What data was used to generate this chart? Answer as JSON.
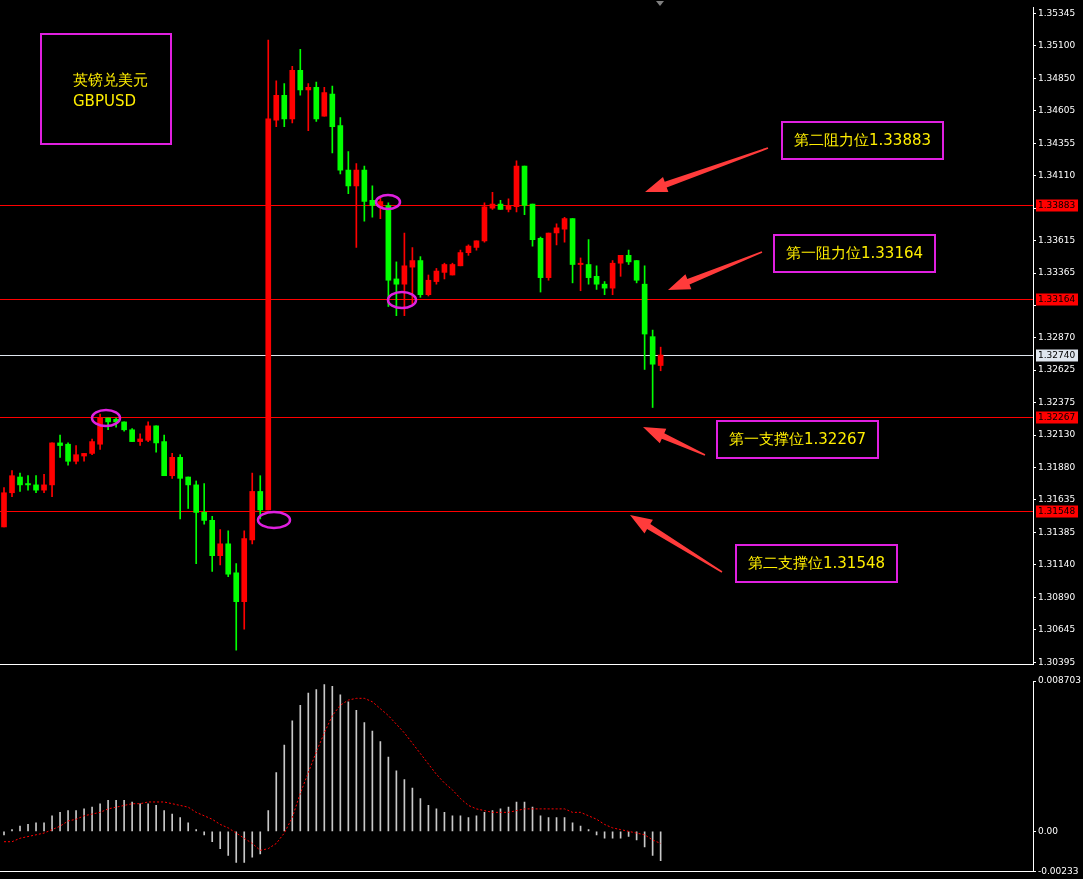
{
  "chart_data": [
    {
      "type": "candlestick",
      "title": "英镑兑美元",
      "subtitle": "GBPUSD",
      "categories": [
        null,
        null,
        null,
        null,
        null,
        null,
        null,
        null,
        null,
        null,
        null,
        null,
        null,
        null,
        null,
        null,
        null,
        null,
        null,
        null,
        null,
        null,
        null,
        null,
        null,
        null,
        null,
        null,
        null,
        null,
        null,
        null,
        null,
        null,
        null,
        null,
        null,
        null,
        null,
        null,
        null,
        null,
        null,
        null,
        null,
        null,
        null,
        null,
        null,
        null,
        null,
        null,
        null,
        null,
        null,
        null,
        null,
        null,
        null,
        null,
        null,
        null,
        null,
        null,
        null,
        null,
        null,
        null,
        null,
        null,
        null,
        null,
        null,
        null,
        null,
        null,
        null,
        null,
        null,
        null,
        null,
        null,
        null,
        null,
        null,
        null,
        null,
        null,
        null,
        null,
        null,
        null,
        null,
        null,
        null,
        null,
        null,
        null,
        null,
        null,
        null,
        null,
        null,
        null,
        null,
        null,
        null,
        null,
        null,
        null,
        null,
        null,
        null,
        null,
        null,
        null,
        null,
        null,
        null,
        null,
        null,
        null,
        null,
        null,
        null,
        null,
        null,
        null,
        null
      ],
      "ohlc": [
        [
          1.3143,
          1.3173,
          1.3143,
          1.3169
        ],
        [
          1.3169,
          1.3186,
          1.3166,
          1.3182
        ],
        [
          1.3181,
          1.3184,
          1.317,
          1.3175
        ],
        [
          1.3176,
          1.3182,
          1.3171,
          1.3175
        ],
        [
          1.3175,
          1.3182,
          1.3169,
          1.3171
        ],
        [
          1.3171,
          1.3183,
          1.3169,
          1.3175
        ],
        [
          1.3175,
          1.3207,
          1.3166,
          1.3207
        ],
        [
          1.3207,
          1.3213,
          1.3196,
          1.3205
        ],
        [
          1.3206,
          1.3207,
          1.319,
          1.3193
        ],
        [
          1.3193,
          1.3205,
          1.3191,
          1.3198
        ],
        [
          1.3197,
          1.3199,
          1.3193,
          1.3199
        ],
        [
          1.3199,
          1.321,
          1.3198,
          1.3208
        ],
        [
          1.3206,
          1.3229,
          1.3202,
          1.3226
        ],
        [
          1.3226,
          1.3226,
          1.3217,
          1.3223
        ],
        [
          1.3225,
          1.3226,
          1.3219,
          1.3223
        ],
        [
          1.3223,
          1.3223,
          1.3216,
          1.3217
        ],
        [
          1.3217,
          1.3218,
          1.3208,
          1.3208
        ],
        [
          1.3208,
          1.3214,
          1.3205,
          1.321
        ],
        [
          1.3209,
          1.3223,
          1.3208,
          1.322
        ],
        [
          1.322,
          1.322,
          1.32,
          1.3207
        ],
        [
          1.3208,
          1.3213,
          1.3182,
          1.3182
        ],
        [
          1.3182,
          1.3199,
          1.318,
          1.3196
        ],
        [
          1.3196,
          1.3198,
          1.3149,
          1.318
        ],
        [
          1.3181,
          1.3181,
          1.3157,
          1.3175
        ],
        [
          1.3175,
          1.3178,
          1.3115,
          1.3154
        ],
        [
          1.3154,
          1.3176,
          1.3145,
          1.3148
        ],
        [
          1.3148,
          1.3151,
          1.3109,
          1.3121
        ],
        [
          1.3121,
          1.3141,
          1.3114,
          1.313
        ],
        [
          1.313,
          1.314,
          1.3105,
          1.3107
        ],
        [
          1.3108,
          1.3115,
          1.3049,
          1.3086
        ],
        [
          1.3086,
          1.314,
          1.3065,
          1.3134
        ],
        [
          1.3133,
          1.3184,
          1.313,
          1.317
        ],
        [
          1.317,
          1.3182,
          1.3149,
          1.3156
        ],
        [
          1.3156,
          1.3514,
          1.3156,
          1.3454
        ],
        [
          1.3453,
          1.3483,
          1.3448,
          1.3472
        ],
        [
          1.3472,
          1.3481,
          1.3448,
          1.3454
        ],
        [
          1.3454,
          1.3494,
          1.3451,
          1.3491
        ],
        [
          1.3491,
          1.3507,
          1.3472,
          1.3476
        ],
        [
          1.3476,
          1.3481,
          1.3445,
          1.3478
        ],
        [
          1.3478,
          1.3482,
          1.3452,
          1.3454
        ],
        [
          1.3456,
          1.3478,
          1.3456,
          1.3474
        ],
        [
          1.3473,
          1.3479,
          1.3428,
          1.3448
        ],
        [
          1.3449,
          1.3455,
          1.3412,
          1.3415
        ],
        [
          1.3415,
          1.3429,
          1.3397,
          1.3403
        ],
        [
          1.3403,
          1.342,
          1.3356,
          1.3415
        ],
        [
          1.3415,
          1.3418,
          1.3376,
          1.3391
        ],
        [
          1.3392,
          1.3403,
          1.3379,
          1.3388
        ],
        [
          1.3387,
          1.3394,
          1.3378,
          1.3391
        ],
        [
          1.3388,
          1.339,
          1.3311,
          1.3331
        ],
        [
          1.3332,
          1.3345,
          1.3304,
          1.3328
        ],
        [
          1.3328,
          1.3367,
          1.3304,
          1.3342
        ],
        [
          1.3341,
          1.3356,
          1.3313,
          1.3346
        ],
        [
          1.3346,
          1.3349,
          1.3318,
          1.332
        ],
        [
          1.332,
          1.3335,
          1.3319,
          1.3331
        ],
        [
          1.333,
          1.334,
          1.3328,
          1.3338
        ],
        [
          1.3337,
          1.3344,
          1.3332,
          1.3343
        ],
        [
          1.3335,
          1.3344,
          1.3335,
          1.3343
        ],
        [
          1.3342,
          1.3354,
          1.3342,
          1.3352
        ],
        [
          1.3352,
          1.3358,
          1.335,
          1.3357
        ],
        [
          1.3356,
          1.3361,
          1.3354,
          1.3361
        ],
        [
          1.3361,
          1.339,
          1.336,
          1.3387
        ],
        [
          1.3386,
          1.3398,
          1.3385,
          1.3389
        ],
        [
          1.3389,
          1.3392,
          1.3385,
          1.3385
        ],
        [
          1.3385,
          1.3393,
          1.3383,
          1.3388
        ],
        [
          1.3387,
          1.3422,
          1.3383,
          1.3418
        ],
        [
          1.3418,
          1.3418,
          1.3381,
          1.3388
        ],
        [
          1.3389,
          1.3389,
          1.3357,
          1.3362
        ],
        [
          1.3363,
          1.3364,
          1.3322,
          1.3333
        ],
        [
          1.3333,
          1.3367,
          1.3331,
          1.3367
        ],
        [
          1.3367,
          1.3374,
          1.3358,
          1.3371
        ],
        [
          1.337,
          1.3379,
          1.336,
          1.3378
        ],
        [
          1.3378,
          1.3378,
          1.3329,
          1.3343
        ],
        [
          1.3343,
          1.3348,
          1.3323,
          1.3344
        ],
        [
          1.3343,
          1.3362,
          1.3328,
          1.3333
        ],
        [
          1.3334,
          1.3342,
          1.3324,
          1.3328
        ],
        [
          1.3328,
          1.333,
          1.332,
          1.3325
        ],
        [
          1.3325,
          1.3346,
          1.332,
          1.3344
        ],
        [
          1.3344,
          1.335,
          1.3334,
          1.335
        ],
        [
          1.335,
          1.3354,
          1.3343,
          1.3345
        ],
        [
          1.3346,
          1.3346,
          1.3329,
          1.3331
        ],
        [
          1.3328,
          1.3342,
          1.3263,
          1.329
        ],
        [
          1.3288,
          1.3293,
          1.3234,
          1.3267
        ],
        [
          1.3266,
          1.328,
          1.3262,
          1.3274
        ],
        null,
        null,
        null,
        null,
        null,
        null,
        null,
        null,
        null,
        null,
        null,
        null,
        null,
        null,
        null,
        null,
        null,
        null,
        null,
        null,
        null,
        null,
        null,
        null,
        null,
        null,
        null,
        null,
        null,
        null,
        null,
        null,
        null,
        null,
        null,
        null,
        null,
        null,
        null,
        null,
        null,
        null,
        null,
        null,
        null,
        null
      ],
      "colors": [
        "#ff0000",
        "#ff0000",
        "#00ff00",
        "#00ff00",
        "#00ff00",
        "#ff0000",
        "#ff0000",
        "#00ff00",
        "#00ff00",
        "#ff0000",
        "#ff0000",
        "#ff0000",
        "#ff0000",
        "#00ff00",
        "#00ff00",
        "#00ff00",
        "#00ff00",
        "#ff0000",
        "#ff0000",
        "#00ff00",
        "#00ff00",
        "#ff0000",
        "#00ff00",
        "#00ff00",
        "#00ff00",
        "#00ff00",
        "#00ff00",
        "#ff0000",
        "#00ff00",
        "#00ff00",
        "#ff0000",
        "#ff0000",
        "#00ff00",
        "#ff0000",
        "#ff0000",
        "#00ff00",
        "#ff0000",
        "#00ff00",
        "#ff0000",
        "#00ff00",
        "#ff0000",
        "#00ff00",
        "#00ff00",
        "#00ff00",
        "#ff0000",
        "#00ff00",
        "#00ff00",
        "#ff0000",
        "#00ff00",
        "#00ff00",
        "#ff0000",
        "#ff0000",
        "#00ff00",
        "#ff0000",
        "#ff0000",
        "#ff0000",
        "#ff0000",
        "#ff0000",
        "#ff0000",
        "#ff0000",
        "#ff0000",
        "#ff0000",
        "#00ff00",
        "#ff0000",
        "#ff0000",
        "#00ff00",
        "#00ff00",
        "#00ff00",
        "#ff0000",
        "#ff0000",
        "#ff0000",
        "#00ff00",
        "#ff0000",
        "#00ff00",
        "#00ff00",
        "#00ff00",
        "#ff0000",
        "#ff0000",
        "#00ff00",
        "#00ff00",
        "#00ff00",
        "#00ff00",
        "#ff0000",
        null,
        null,
        null,
        null,
        null,
        null,
        null,
        null,
        null,
        null,
        null,
        null,
        null,
        null,
        null,
        null,
        null,
        null,
        null,
        null,
        null,
        null,
        null,
        null,
        null,
        null,
        null,
        null,
        null,
        null,
        null,
        null,
        null,
        null,
        null,
        null,
        null,
        null,
        null,
        null,
        null,
        null,
        null,
        null,
        null,
        null
      ],
      "ylim": [
        1.3038,
        1.3539
      ],
      "yticks": [
        1.35345,
        {
          "value": 1.351,
          "label": "1.35100"
        },
        {
          "value": 1.3485,
          "label": "1.34850"
        },
        1.34605,
        1.34355,
        {
          "value": 1.3411,
          "label": "1.34110"
        },
        {
          "value": 1.3386,
          "label": null
        },
        1.33615,
        1.33365,
        {
          "value": 1.3312,
          "label": null
        },
        {
          "value": 1.3287,
          "label": "1.32870"
        },
        1.32625,
        1.32375,
        {
          "value": 1.3213,
          "label": "1.32130"
        },
        {
          "value": 1.3188,
          "label": "1.31880"
        },
        1.31635,
        1.31385,
        {
          "value": 1.3114,
          "label": "1.31140"
        },
        {
          "value": 1.3089,
          "label": "1.30890"
        },
        1.30645,
        1.30395
      ],
      "tick_labels": "y",
      "ref_lines": [
        {
          "axis": "y",
          "value": 1.33883,
          "label": "1.33883",
          "color": "#ff0000"
        },
        {
          "axis": "y",
          "value": 1.33164,
          "label": "1.33164",
          "color": "#ff0000"
        },
        {
          "axis": "y",
          "value": 1.3274,
          "label": "1.32740",
          "color": "#dfe6ee"
        },
        {
          "axis": "y",
          "value": 1.32267,
          "label": "1.32267",
          "color": "#ff0000"
        },
        {
          "axis": "y",
          "value": 1.31548,
          "label": "1.31548",
          "color": "#ff0000"
        }
      ],
      "annotations": [
        "第二阻力位1.33883",
        "第一阻力位1.33164",
        "第一支撑位1.32267",
        "第二支撑位1.31548"
      ]
    },
    {
      "type": "bar",
      "categories": [
        null,
        null,
        null,
        null,
        null,
        null,
        null,
        null,
        null,
        null,
        null,
        null,
        null,
        null,
        null,
        null,
        null,
        null,
        null,
        null,
        null,
        null,
        null,
        null,
        null,
        null,
        null,
        null,
        null,
        null,
        null,
        null,
        null,
        null,
        null,
        null,
        null,
        null,
        null,
        null,
        null,
        null,
        null,
        null,
        null,
        null,
        null,
        null,
        null,
        null,
        null,
        null,
        null,
        null,
        null,
        null,
        null,
        null,
        null,
        null,
        null,
        null,
        null,
        null,
        null,
        null,
        null,
        null,
        null,
        null,
        null,
        null,
        null,
        null,
        null,
        null,
        null,
        null,
        null,
        null,
        null,
        null,
        null,
        null,
        null,
        null,
        null,
        null,
        null,
        null,
        null,
        null,
        null,
        null,
        null,
        null,
        null,
        null,
        null,
        null,
        null,
        null,
        null,
        null,
        null,
        null,
        null,
        null,
        null,
        null,
        null,
        null,
        null,
        null,
        null,
        null,
        null,
        null,
        null,
        null,
        null,
        null,
        null,
        null,
        null,
        null,
        null,
        null,
        null
      ],
      "series": [
        {
          "type": "bar",
          "color": "#c8c8c8",
          "values": [
            -0.0002,
            0.0001,
            0.0003,
            0.0004,
            0.0005,
            0.0005,
            0.0009,
            0.0011,
            0.0012,
            0.0012,
            0.0013,
            0.0014,
            0.0016,
            0.0018,
            0.0018,
            0.0018,
            0.0017,
            0.0016,
            0.0016,
            0.0015,
            0.0012,
            0.001,
            0.0008,
            0.0005,
            0.0001,
            -0.0002,
            -0.0006,
            -0.001,
            -0.0014,
            -0.0018,
            -0.0018,
            -0.0015,
            -0.0013,
            0.0012,
            0.0034,
            0.005,
            0.0064,
            0.0073,
            0.008,
            0.0082,
            0.0085,
            0.0084,
            0.0079,
            0.0075,
            0.007,
            0.0063,
            0.0058,
            0.0052,
            0.0043,
            0.0035,
            0.003,
            0.0025,
            0.0019,
            0.0015,
            0.0013,
            0.0011,
            0.0009,
            0.0009,
            0.0008,
            0.0009,
            0.0011,
            0.0012,
            0.0013,
            0.0014,
            0.0017,
            0.0017,
            0.0014,
            0.0009,
            0.0008,
            0.0008,
            0.0008,
            0.0005,
            0.0003,
            0.0001,
            -0.0002,
            -0.0004,
            -0.0004,
            -0.0004,
            -0.0003,
            -0.0005,
            -0.0009,
            -0.0014,
            -0.0017,
            null,
            null,
            null,
            null,
            null,
            null,
            null,
            null,
            null,
            null,
            null,
            null,
            null,
            null,
            null,
            null,
            null,
            null,
            null,
            null,
            null,
            null,
            null,
            null,
            null,
            null,
            null,
            null,
            null,
            null,
            null,
            null,
            null,
            null,
            null,
            null,
            null,
            null,
            null,
            null,
            null,
            null,
            null,
            null,
            null,
            null
          ]
        },
        {
          "type": "line",
          "color": "#ff0000",
          "line_style": "dotted",
          "values": [
            -0.0006,
            -0.0006,
            -0.0004,
            -0.0003,
            -0.0002,
            -0.0001,
            0.0001,
            0.0003,
            0.0006,
            0.0007,
            0.0009,
            0.001,
            0.0011,
            0.0013,
            0.0014,
            0.0015,
            0.0016,
            0.0016,
            0.0017,
            0.0017,
            0.0017,
            0.0016,
            0.0015,
            0.0014,
            0.0011,
            0.0009,
            0.0007,
            0.0004,
            0.0002,
            -0.0001,
            -0.0004,
            -0.0007,
            -0.0011,
            -0.001,
            -0.0007,
            -0.0001,
            0.0008,
            0.0022,
            0.0034,
            0.0046,
            0.0057,
            0.0067,
            0.0073,
            0.0076,
            0.0077,
            0.0077,
            0.0075,
            0.0071,
            0.0067,
            0.0062,
            0.0057,
            0.0051,
            0.0045,
            0.0039,
            0.0033,
            0.0028,
            0.0024,
            0.0019,
            0.0015,
            0.0013,
            0.0012,
            0.0011,
            0.0011,
            0.0011,
            0.0012,
            0.0013,
            0.0013,
            0.0013,
            0.0013,
            0.0013,
            0.0013,
            0.0011,
            0.0011,
            0.0009,
            0.0007,
            0.0004,
            0.0002,
            0.0001,
            0,
            -0.0001,
            -0.0002,
            -0.0005,
            -0.0007,
            null,
            null,
            null,
            null,
            null,
            null,
            null,
            null,
            null,
            null,
            null,
            null,
            null,
            null,
            null,
            null,
            null,
            null,
            null,
            null,
            null,
            null,
            null,
            null,
            null,
            null,
            null,
            null,
            null,
            null,
            null,
            null,
            null,
            null,
            null,
            null,
            null,
            null,
            null,
            null,
            null,
            null,
            null,
            null,
            null,
            null
          ]
        }
      ],
      "ylim": [
        -0.00233,
        0.008703
      ],
      "yticks": [
        0.008703,
        {
          "value": 0,
          "label": "0.00"
        },
        -0.00233
      ],
      "tick_labels": "y"
    }
  ]
}
